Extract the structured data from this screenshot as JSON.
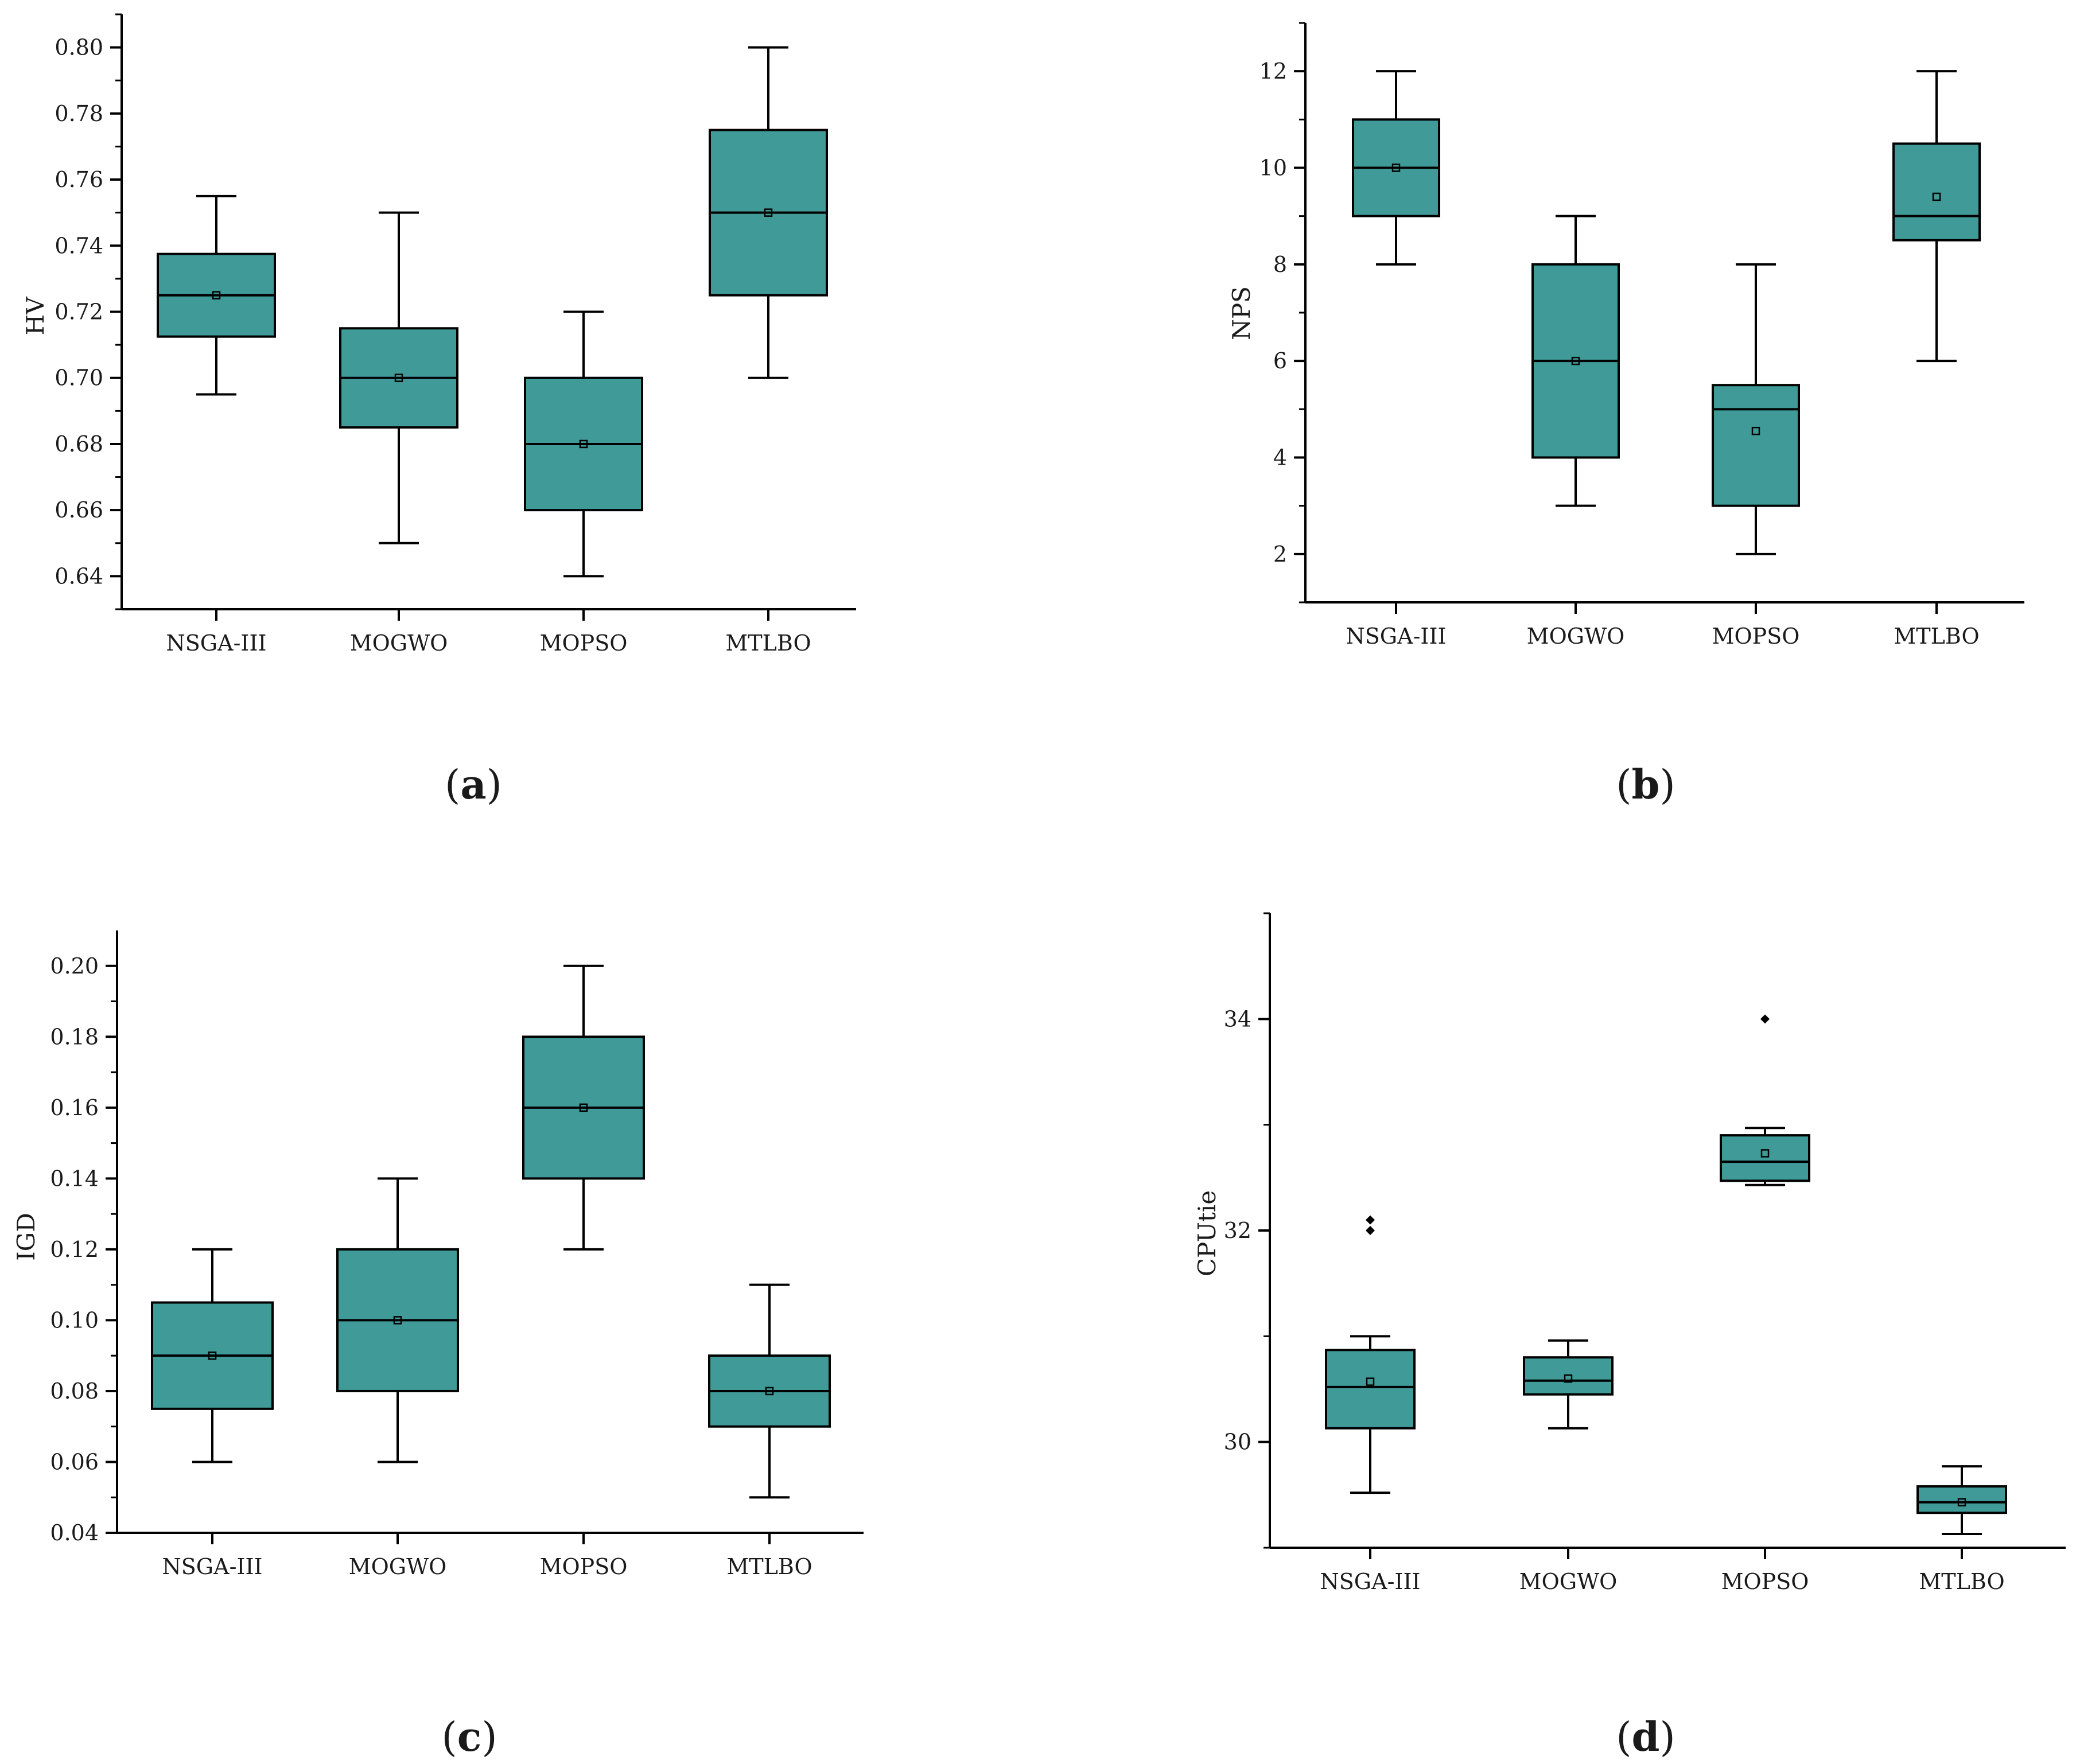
{
  "colors": {
    "box_fill": "#3f9a98",
    "stroke": "#000000",
    "background": "#ffffff"
  },
  "chart_data": [
    {
      "type": "box",
      "panel_label": "a",
      "ylabel": "HV",
      "xlabel": "",
      "categories": [
        "NSGA-III",
        "MOGWO",
        "MOPSO",
        "MTLBO"
      ],
      "ylim": [
        0.63,
        0.81
      ],
      "yticks": [
        0.64,
        0.66,
        0.68,
        0.7,
        0.72,
        0.74,
        0.76,
        0.78,
        0.8
      ],
      "ytick_labels": [
        "0.64",
        "0.66",
        "0.68",
        "0.70",
        "0.72",
        "0.74",
        "0.76",
        "0.78",
        "0.80"
      ],
      "boxes": [
        {
          "name": "NSGA-III",
          "min": 0.695,
          "q1": 0.7125,
          "median": 0.725,
          "q3": 0.7375,
          "max": 0.755,
          "mean": 0.725,
          "outliers": []
        },
        {
          "name": "MOGWO",
          "min": 0.65,
          "q1": 0.685,
          "median": 0.7,
          "q3": 0.715,
          "max": 0.75,
          "mean": 0.7,
          "outliers": []
        },
        {
          "name": "MOPSO",
          "min": 0.64,
          "q1": 0.66,
          "median": 0.68,
          "q3": 0.7,
          "max": 0.72,
          "mean": 0.68,
          "outliers": []
        },
        {
          "name": "MTLBO",
          "min": 0.7,
          "q1": 0.725,
          "median": 0.75,
          "q3": 0.775,
          "max": 0.8,
          "mean": 0.75,
          "outliers": []
        }
      ]
    },
    {
      "type": "box",
      "panel_label": "b",
      "ylabel": "NPS",
      "xlabel": "",
      "categories": [
        "NSGA-III",
        "MOGWO",
        "MOPSO",
        "MTLBO"
      ],
      "ylim": [
        1.0,
        13.0
      ],
      "yticks": [
        2,
        4,
        6,
        8,
        10,
        12
      ],
      "ytick_labels": [
        "2",
        "4",
        "6",
        "8",
        "10",
        "12"
      ],
      "boxes": [
        {
          "name": "NSGA-III",
          "min": 8,
          "q1": 9,
          "median": 10,
          "q3": 11,
          "max": 12,
          "mean": 10,
          "outliers": []
        },
        {
          "name": "MOGWO",
          "min": 3,
          "q1": 4,
          "median": 6,
          "q3": 8,
          "max": 9,
          "mean": 6,
          "outliers": []
        },
        {
          "name": "MOPSO",
          "min": 2,
          "q1": 3,
          "median": 5,
          "q3": 5.5,
          "max": 8,
          "mean": 4.55,
          "outliers": []
        },
        {
          "name": "MTLBO",
          "min": 6,
          "q1": 8.5,
          "median": 9,
          "q3": 10.5,
          "max": 12,
          "mean": 9.4,
          "outliers": []
        }
      ]
    },
    {
      "type": "box",
      "panel_label": "c",
      "ylabel": "IGD",
      "xlabel": "",
      "categories": [
        "NSGA-III",
        "MOGWO",
        "MOPSO",
        "MTLBO"
      ],
      "ylim": [
        0.04,
        0.21
      ],
      "yticks": [
        0.04,
        0.06,
        0.08,
        0.1,
        0.12,
        0.14,
        0.16,
        0.18,
        0.2
      ],
      "ytick_labels": [
        "0.04",
        "0.06",
        "0.08",
        "0.10",
        "0.12",
        "0.14",
        "0.16",
        "0.18",
        "0.20"
      ],
      "boxes": [
        {
          "name": "NSGA-III",
          "min": 0.06,
          "q1": 0.075,
          "median": 0.09,
          "q3": 0.105,
          "max": 0.12,
          "mean": 0.09,
          "outliers": []
        },
        {
          "name": "MOGWO",
          "min": 0.06,
          "q1": 0.08,
          "median": 0.1,
          "q3": 0.12,
          "max": 0.14,
          "mean": 0.1,
          "outliers": []
        },
        {
          "name": "MOPSO",
          "min": 0.12,
          "q1": 0.14,
          "median": 0.16,
          "q3": 0.18,
          "max": 0.2,
          "mean": 0.16,
          "outliers": []
        },
        {
          "name": "MTLBO",
          "min": 0.05,
          "q1": 0.07,
          "median": 0.08,
          "q3": 0.09,
          "max": 0.11,
          "mean": 0.08,
          "outliers": []
        }
      ]
    },
    {
      "type": "box",
      "panel_label": "d",
      "ylabel": "CPUtie",
      "xlabel": "",
      "categories": [
        "NSGA-III",
        "MOGWO",
        "MOPSO",
        "MTLBO"
      ],
      "ylim": [
        29.0,
        35.0
      ],
      "yticks": [
        30,
        32,
        34
      ],
      "ytick_labels": [
        "30",
        "32",
        "34"
      ],
      "boxes": [
        {
          "name": "NSGA-III",
          "min": 29.52,
          "q1": 30.13,
          "median": 30.52,
          "q3": 30.87,
          "max": 31.0,
          "mean": 30.57,
          "outliers": [
            32.0,
            32.1
          ]
        },
        {
          "name": "MOGWO",
          "min": 30.13,
          "q1": 30.45,
          "median": 30.58,
          "q3": 30.8,
          "max": 30.96,
          "mean": 30.6,
          "outliers": []
        },
        {
          "name": "MOPSO",
          "min": 32.43,
          "q1": 32.47,
          "median": 32.65,
          "q3": 32.9,
          "max": 32.97,
          "mean": 32.73,
          "outliers": [
            34.0
          ]
        },
        {
          "name": "MTLBO",
          "min": 29.13,
          "q1": 29.33,
          "median": 29.43,
          "q3": 29.58,
          "max": 29.77,
          "mean": 29.43,
          "outliers": []
        }
      ]
    }
  ]
}
